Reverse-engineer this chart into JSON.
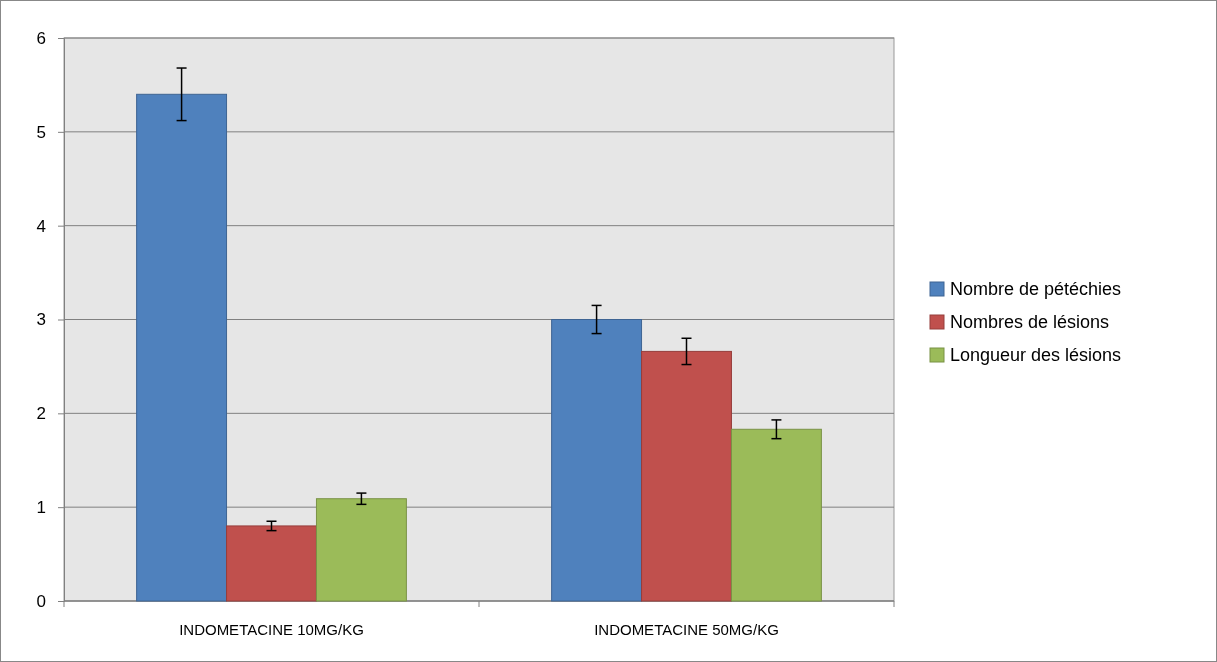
{
  "chart_data": {
    "type": "bar",
    "categories": [
      "INDOMETACINE 10MG/KG",
      "INDOMETACINE 50MG/KG"
    ],
    "series": [
      {
        "name": "Nombre de pétéchies",
        "color": "#4f81bd",
        "values": [
          5.4,
          3.0
        ],
        "errors": [
          0.28,
          0.15
        ]
      },
      {
        "name": "Nombres de lésions",
        "color": "#c0504d",
        "values": [
          0.8,
          2.66
        ],
        "errors": [
          0.05,
          0.14
        ]
      },
      {
        "name": "Longueur des lésions",
        "color": "#9bbb59",
        "values": [
          1.09,
          1.83
        ],
        "errors": [
          0.06,
          0.1
        ]
      }
    ],
    "ylim": [
      0,
      6
    ],
    "yticks": [
      0,
      1,
      2,
      3,
      4,
      5,
      6
    ],
    "grid": "y",
    "legend": "right"
  }
}
